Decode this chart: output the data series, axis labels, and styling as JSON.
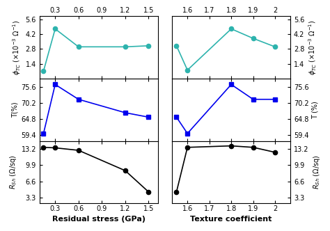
{
  "left": {
    "x": [
      0.15,
      0.3,
      0.6,
      1.2,
      1.5
    ],
    "phi_tc": [
      0.7,
      4.7,
      3.0,
      3.0,
      3.1
    ],
    "T": [
      60.0,
      76.5,
      71.5,
      67.0,
      65.5
    ],
    "Rsh": [
      13.5,
      13.4,
      12.9,
      8.8,
      4.5
    ],
    "xticks": [
      0.3,
      0.6,
      0.9,
      1.2,
      1.5
    ],
    "xlim": [
      0.1,
      1.62
    ],
    "xlabel": "Residual stress (GPa)"
  },
  "right": {
    "x": [
      1.55,
      1.6,
      1.8,
      1.9,
      2.0
    ],
    "phi_tc": [
      3.1,
      0.8,
      4.7,
      3.8,
      3.0
    ],
    "T": [
      65.5,
      60.0,
      76.5,
      71.5,
      71.5
    ],
    "Rsh": [
      4.5,
      13.5,
      13.8,
      13.5,
      12.5
    ],
    "xticks": [
      1.6,
      1.7,
      1.8,
      1.9,
      2.0
    ],
    "xlim": [
      1.53,
      2.07
    ],
    "xlabel": "Texture coefficient"
  },
  "phi_ylim": [
    0.0,
    5.9
  ],
  "phi_yticks": [
    1.4,
    2.8,
    4.2,
    5.6
  ],
  "T_ylim": [
    57.5,
    78.5
  ],
  "T_yticks": [
    59.4,
    64.8,
    70.2,
    75.6
  ],
  "Rsh_ylim": [
    2.2,
    14.8
  ],
  "Rsh_yticks": [
    3.3,
    6.6,
    9.9,
    13.2
  ],
  "teal_color": "#2db3ad",
  "blue_color": "#0000ee",
  "black_color": "#000000",
  "bg_color": "#ffffff"
}
